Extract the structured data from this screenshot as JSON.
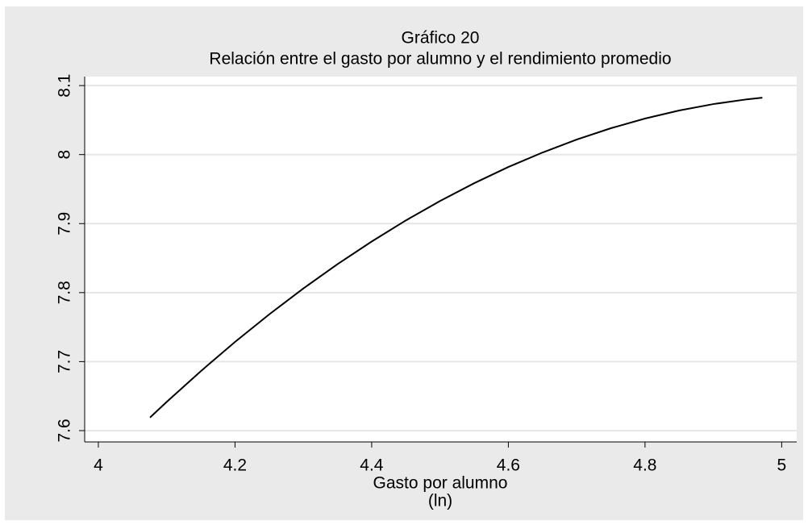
{
  "chart_data": {
    "type": "line",
    "title": "Gráfico 20",
    "subtitle": "Relación entre el gasto por alumno y el rendimiento promedio",
    "x_label": "Gasto por alumno",
    "x_label_note": "(ln)",
    "x": [
      4.0756,
      4.1,
      4.15,
      4.2,
      4.25,
      4.3,
      4.35,
      4.4,
      4.45,
      4.5,
      4.55,
      4.6,
      4.65,
      4.7,
      4.75,
      4.8,
      4.85,
      4.9,
      4.95,
      4.9717
    ],
    "series": [
      {
        "color": "#000000",
        "values": [
          7.619,
          7.6416,
          7.6862,
          7.7285,
          7.7684,
          7.806,
          7.8412,
          7.874,
          7.9046,
          7.9327,
          7.9585,
          7.982,
          8.003,
          8.0218,
          8.0382,
          8.0522,
          8.0639,
          8.0732,
          8.0802,
          8.0825
        ]
      }
    ],
    "xlim": [
      3.98,
      5.022
    ],
    "ylim": [
      7.5836,
      8.113
    ],
    "xticks": [
      4,
      4.2,
      4.4,
      4.6,
      4.8,
      5
    ],
    "yticks": [
      7.6,
      7.7,
      7.8,
      7.9,
      8,
      8.1
    ],
    "grid": true
  }
}
